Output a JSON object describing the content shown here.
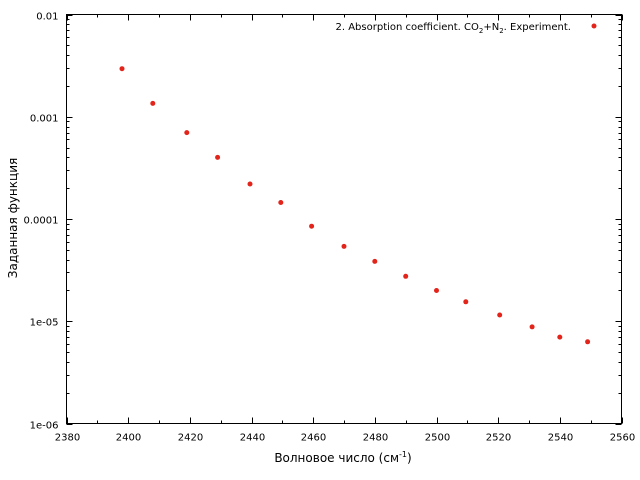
{
  "chart_data": {
    "type": "scatter",
    "xlabel": "Волновое число (см",
    "xlabel_sup": "-1",
    "xlabel_end": ")",
    "ylabel": "Заданная функция",
    "xlim": [
      2380,
      2560
    ],
    "ylim": [
      1e-06,
      0.01
    ],
    "y_scale": "log",
    "grid": false,
    "legend_position": "top-right",
    "x_ticks": [
      2380,
      2400,
      2420,
      2440,
      2460,
      2480,
      2500,
      2520,
      2540,
      2560
    ],
    "x_tick_labels": [
      "2380",
      "2400",
      "2420",
      "2440",
      "2460",
      "2480",
      "2500",
      "2520",
      "2540",
      "2560"
    ],
    "y_ticks": [
      1e-06,
      1e-05,
      0.0001,
      0.001,
      0.01
    ],
    "y_tick_labels": [
      "1e-06",
      "1e-05",
      "0.0001",
      "0.001",
      "0.01"
    ],
    "legend": {
      "prefix": "2. Absorption coefficient. CO",
      "sub1": "2",
      "mid": "+N",
      "sub2": "2",
      "suffix": ". Experiment."
    },
    "series": [
      {
        "name": "2. Absorption coefficient. CO2+N2. Experiment.",
        "color": "#e3241b",
        "x": [
          2398,
          2408,
          2419,
          2429,
          2439.5,
          2449.5,
          2459.5,
          2470,
          2480,
          2490,
          2500,
          2509.5,
          2520.5,
          2531,
          2540,
          2549
        ],
        "y": [
          0.00295,
          0.00135,
          0.0007,
          0.0004,
          0.00022,
          0.000145,
          8.5e-05,
          5.4e-05,
          3.85e-05,
          2.75e-05,
          2e-05,
          1.55e-05,
          1.15e-05,
          8.8e-06,
          7e-06,
          6.3e-06
        ]
      }
    ]
  }
}
